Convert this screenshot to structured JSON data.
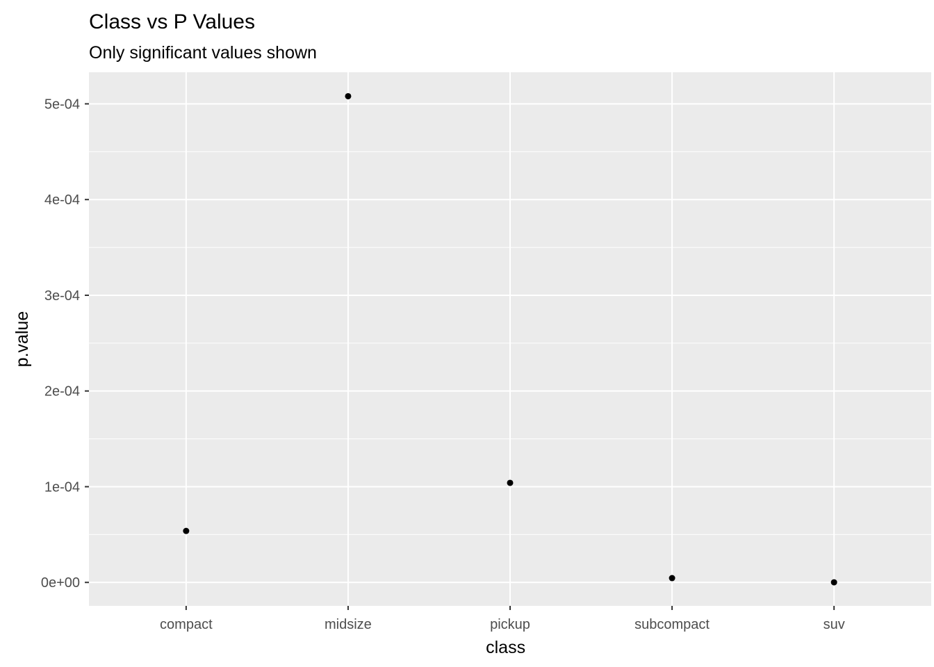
{
  "chart_data": {
    "type": "scatter",
    "title": "Class vs P Values",
    "subtitle": "Only significant values shown",
    "xlabel": "class",
    "ylabel": "p.value",
    "categories": [
      "compact",
      "midsize",
      "pickup",
      "subcompact",
      "suv"
    ],
    "values": [
      5.38e-05,
      0.000508,
      0.000104,
      4.5e-06,
      1e-07
    ],
    "ylim": [
      -2.45e-05,
      0.000533
    ],
    "y_ticks": [
      0,
      0.0001,
      0.0002,
      0.0003,
      0.0004,
      0.0005
    ],
    "y_tick_labels": [
      "0e+00",
      "1e-04",
      "2e-04",
      "3e-04",
      "4e-04",
      "5e-04"
    ],
    "grid": true,
    "legend": "none",
    "colors": {
      "panel": "#ebebeb",
      "grid": "#ffffff",
      "point": "#000000",
      "tick": "#333333"
    }
  }
}
